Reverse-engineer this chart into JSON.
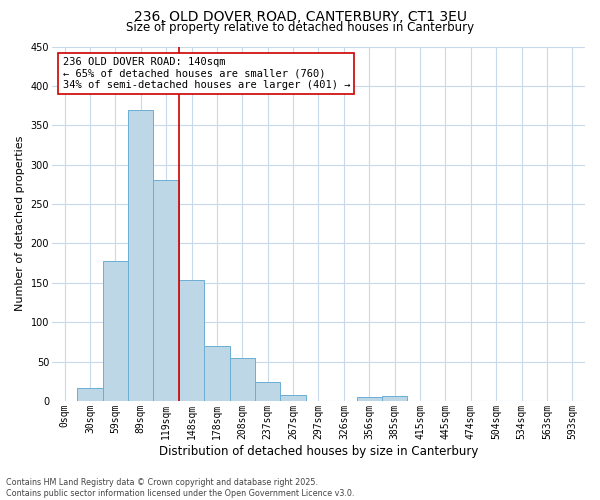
{
  "title_line1": "236, OLD DOVER ROAD, CANTERBURY, CT1 3EU",
  "title_line2": "Size of property relative to detached houses in Canterbury",
  "xlabel": "Distribution of detached houses by size in Canterbury",
  "ylabel": "Number of detached properties",
  "bar_labels": [
    "0sqm",
    "30sqm",
    "59sqm",
    "89sqm",
    "119sqm",
    "148sqm",
    "178sqm",
    "208sqm",
    "237sqm",
    "267sqm",
    "297sqm",
    "326sqm",
    "356sqm",
    "385sqm",
    "415sqm",
    "445sqm",
    "474sqm",
    "504sqm",
    "534sqm",
    "563sqm",
    "593sqm"
  ],
  "bar_heights": [
    0,
    17,
    178,
    370,
    280,
    153,
    70,
    55,
    24,
    8,
    0,
    0,
    5,
    6,
    0,
    0,
    0,
    0,
    0,
    0,
    0
  ],
  "bar_color": "#bdd7e7",
  "bar_edge_color": "#6baed6",
  "vline_color": "#cc0000",
  "ylim": [
    0,
    450
  ],
  "yticks": [
    0,
    50,
    100,
    150,
    200,
    250,
    300,
    350,
    400,
    450
  ],
  "annotation_text": "236 OLD DOVER ROAD: 140sqm\n← 65% of detached houses are smaller (760)\n34% of semi-detached houses are larger (401) →",
  "annotation_box_color": "#ffffff",
  "annotation_box_edge": "#cc0000",
  "background_color": "#ffffff",
  "grid_color": "#c8daea",
  "footer_line1": "Contains HM Land Registry data © Crown copyright and database right 2025.",
  "footer_line2": "Contains public sector information licensed under the Open Government Licence v3.0.",
  "title_fontsize": 10,
  "subtitle_fontsize": 8.5,
  "ylabel_fontsize": 8,
  "xlabel_fontsize": 8.5,
  "tick_fontsize": 7,
  "annotation_fontsize": 7.5,
  "footer_fontsize": 5.8
}
